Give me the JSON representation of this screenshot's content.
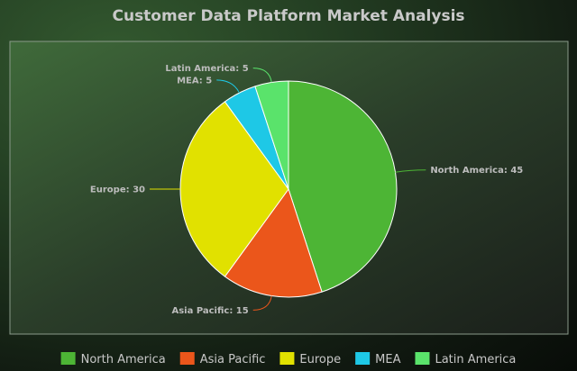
{
  "chart_data": {
    "type": "pie",
    "title": "Customer Data Platform Market Analysis",
    "categories": [
      "North America",
      "Asia Pacific",
      "Europe",
      "MEA",
      "Latin America"
    ],
    "values": [
      45,
      15,
      30,
      5,
      5
    ],
    "labels": [
      "North America: 45",
      "Asia Pacific: 15",
      "Europe: 30",
      "MEA: 5",
      "Latin America: 5"
    ],
    "colors": [
      "#4db535",
      "#eb561b",
      "#e1e100",
      "#1ec8e6",
      "#5ae36b"
    ],
    "start_angle_deg": 0,
    "direction": "clockwise",
    "legend": {
      "position": "bottom",
      "entries": [
        "North America",
        "Asia Pacific",
        "Europe",
        "MEA",
        "Latin America"
      ]
    },
    "grid": false
  }
}
